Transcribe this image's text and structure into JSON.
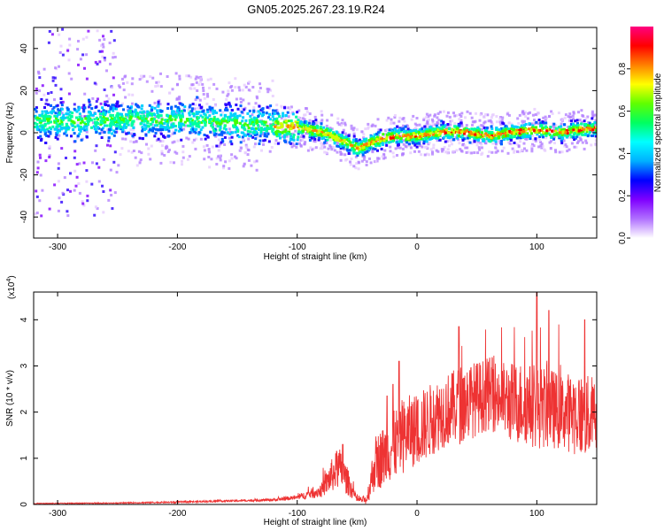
{
  "title": "GN05.2025.267.23.19.R24",
  "chart_data": [
    {
      "type": "heatmap",
      "xlabel": "Height of straight line (km)",
      "ylabel": "Frequency (Hz)",
      "xlim": [
        -320,
        150
      ],
      "ylim": [
        -50,
        50
      ],
      "x_ticks": [
        -300,
        -200,
        -100,
        0,
        100
      ],
      "y_ticks": [
        -40,
        -20,
        0,
        20,
        40
      ],
      "x_tick_labels": [
        "-300",
        "-200",
        "-100",
        "0",
        "100"
      ],
      "y_tick_labels": [
        "-40",
        "-20",
        "0",
        "20",
        "40"
      ],
      "colorbar": {
        "label": "Normalized spectral amplitude",
        "range": [
          0,
          1
        ],
        "ticks": [
          0.0,
          0.2,
          0.4,
          0.6,
          0.8
        ],
        "tick_labels": [
          "0.0",
          "0.2",
          "0.4",
          "0.6",
          "0.8"
        ],
        "colormap": [
          "#ffffff",
          "#7f00ff",
          "#0000ff",
          "#00ffff",
          "#00ff00",
          "#ffff00",
          "#ff0000",
          "#ff00ff"
        ]
      },
      "ridge": {
        "x": [
          -320,
          -280,
          -250,
          -200,
          -150,
          -120,
          -100,
          -80,
          -60,
          -50,
          -40,
          -30,
          -20,
          0,
          20,
          40,
          60,
          80,
          100,
          120,
          150
        ],
        "y": [
          6,
          6,
          7,
          7,
          5,
          4,
          3,
          1,
          -4,
          -7,
          -4,
          -2,
          -1,
          -1,
          1,
          1,
          -1,
          1,
          2,
          1,
          3
        ]
      }
    },
    {
      "type": "line",
      "xlabel": "Height of straight line (km)",
      "ylabel": "SNR (10 * v/v)",
      "scale_label": "(x10",
      "scale_exp": "4",
      "scale_close": ")",
      "xlim": [
        -320,
        150
      ],
      "ylim": [
        0,
        4.6
      ],
      "x_ticks": [
        -300,
        -200,
        -100,
        0,
        100
      ],
      "y_ticks": [
        0,
        1,
        2,
        3,
        4
      ],
      "x_tick_labels": [
        "-300",
        "-200",
        "-100",
        "0",
        "100"
      ],
      "y_tick_labels": [
        "0",
        "1",
        "2",
        "3",
        "4"
      ],
      "color": "#ee3333",
      "envelope": {
        "x": [
          -320,
          -250,
          -200,
          -150,
          -120,
          -100,
          -80,
          -72,
          -65,
          -58,
          -50,
          -42,
          -35,
          -25,
          -15,
          -5,
          0,
          10,
          20,
          30,
          40,
          50,
          60,
          70,
          80,
          90,
          100,
          110,
          120,
          130,
          140,
          150
        ],
        "y": [
          0.02,
          0.03,
          0.05,
          0.08,
          0.1,
          0.15,
          0.3,
          0.6,
          0.8,
          0.5,
          0.1,
          0.1,
          0.9,
          1.1,
          1.4,
          1.6,
          1.6,
          1.8,
          2.0,
          2.1,
          2.2,
          2.3,
          2.4,
          2.3,
          2.2,
          2.2,
          2.1,
          2.1,
          2.0,
          2.0,
          1.9,
          1.9
        ],
        "noise": [
          0.01,
          0.01,
          0.02,
          0.02,
          0.03,
          0.05,
          0.15,
          0.35,
          0.45,
          0.3,
          0.05,
          0.1,
          0.6,
          0.7,
          0.8,
          0.8,
          0.8,
          0.8,
          0.8,
          0.8,
          0.9,
          0.8,
          0.8,
          0.8,
          0.9,
          0.9,
          0.9,
          0.9,
          0.8,
          0.9,
          0.9,
          0.9
        ],
        "peaks": [
          [
            -67,
            1.15
          ],
          [
            -62,
            1.3
          ],
          [
            -25,
            2.35
          ],
          [
            -20,
            2.6
          ],
          [
            -15,
            3.1
          ],
          [
            35,
            3.85
          ],
          [
            100,
            4.6
          ],
          [
            110,
            4.2
          ],
          [
            140,
            4.0
          ]
        ]
      }
    }
  ]
}
